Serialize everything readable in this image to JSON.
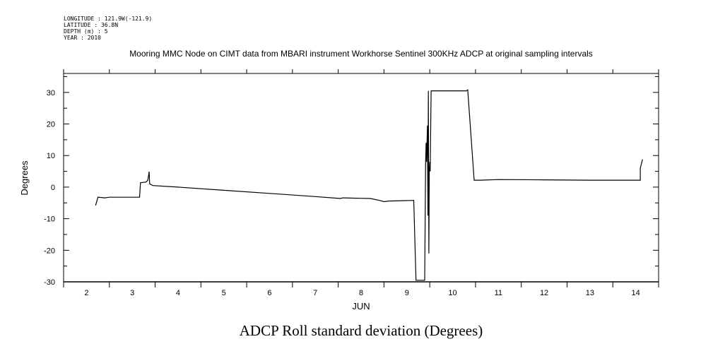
{
  "meta": {
    "longitude": "LONGITUDE : 121.9W(-121.9)",
    "latitude": "LATITUDE : 36.8N",
    "depth": "DEPTH (m) : 5",
    "year": "YEAR : 2010"
  },
  "chart_data": {
    "type": "line",
    "title": "Mooring MMC Node on CIMT data from MBARI instrument Workhorse Sentinel 300KHz ADCP at original sampling intervals",
    "xlabel": "JUN",
    "ylabel": "Degrees",
    "caption": "ADCP Roll standard deviation (Degrees)",
    "xlim": [
      1.5,
      14.5
    ],
    "ylim": [
      -30,
      36
    ],
    "x_ticks": [
      "2",
      "3",
      "4",
      "5",
      "6",
      "7",
      "8",
      "9",
      "10",
      "11",
      "12",
      "13",
      "14"
    ],
    "x_tick_values": [
      2,
      3,
      4,
      5,
      6,
      7,
      8,
      9,
      10,
      11,
      12,
      13,
      14
    ],
    "y_ticks": [
      "30",
      "20",
      "10",
      "0",
      "-10",
      "-20",
      "-30"
    ],
    "y_tick_values": [
      30,
      20,
      10,
      0,
      -10,
      -20,
      -30
    ],
    "grid": false,
    "series": [
      {
        "color": "#000000",
        "points": [
          [
            2.2,
            -5.8
          ],
          [
            2.25,
            -3.2
          ],
          [
            2.4,
            -3.4
          ],
          [
            2.5,
            -3.2
          ],
          [
            3.16,
            -3.2
          ],
          [
            3.18,
            1.4
          ],
          [
            3.3,
            1.6
          ],
          [
            3.34,
            2.2
          ],
          [
            3.37,
            4.9
          ],
          [
            3.38,
            1.0
          ],
          [
            3.45,
            0.5
          ],
          [
            4.0,
            0.0
          ],
          [
            5.0,
            -1.0
          ],
          [
            6.0,
            -2.0
          ],
          [
            7.0,
            -3.0
          ],
          [
            7.55,
            -3.6
          ],
          [
            7.6,
            -3.4
          ],
          [
            7.9,
            -3.5
          ],
          [
            8.2,
            -3.6
          ],
          [
            8.4,
            -4.2
          ],
          [
            8.5,
            -4.6
          ],
          [
            8.6,
            -4.4
          ],
          [
            8.9,
            -4.3
          ],
          [
            9.15,
            -4.2
          ],
          [
            9.2,
            -29.5
          ],
          [
            9.38,
            -29.5
          ],
          [
            9.39,
            -29.5
          ],
          [
            9.41,
            8.0
          ],
          [
            9.42,
            14.0
          ],
          [
            9.43,
            8.0
          ],
          [
            9.45,
            19.5
          ],
          [
            9.46,
            -9.0
          ],
          [
            9.47,
            30.5
          ],
          [
            9.48,
            -21.0
          ],
          [
            9.49,
            5.0
          ],
          [
            9.5,
            8.0
          ],
          [
            9.51,
            5.0
          ],
          [
            9.53,
            30.5
          ],
          [
            10.3,
            30.5
          ],
          [
            10.33,
            30.8
          ],
          [
            10.47,
            2.2
          ],
          [
            10.6,
            2.2
          ],
          [
            11.0,
            2.4
          ],
          [
            12.0,
            2.3
          ],
          [
            13.0,
            2.2
          ],
          [
            14.1,
            2.2
          ],
          [
            14.1,
            6.0
          ],
          [
            14.15,
            8.8
          ]
        ]
      }
    ]
  }
}
